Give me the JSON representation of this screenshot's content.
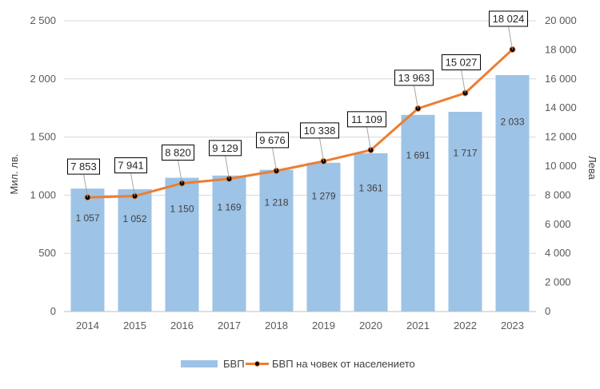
{
  "chart_data": {
    "type": "bar",
    "categories": [
      "2014",
      "2015",
      "2016",
      "2017",
      "2018",
      "2019",
      "2020",
      "2021",
      "2022",
      "2023"
    ],
    "series": [
      {
        "name": "БВП",
        "type": "bar",
        "axis": "left",
        "values": [
          1057,
          1052,
          1150,
          1169,
          1218,
          1279,
          1361,
          1691,
          1717,
          2033
        ],
        "labels": [
          "1 057",
          "1 052",
          "1 150",
          "1 169",
          "1 218",
          "1 279",
          "1 361",
          "1 691",
          "1 717",
          "2 033"
        ],
        "color": "#9dc3e6"
      },
      {
        "name": "БВП на човек от населението",
        "type": "line",
        "axis": "right",
        "values": [
          7853,
          7941,
          8820,
          9129,
          9676,
          10338,
          11109,
          13963,
          15027,
          18024
        ],
        "labels": [
          "7 853",
          "7 941",
          "8 820",
          "9 129",
          "9 676",
          "10 338",
          "11 109",
          "13 963",
          "15 027",
          "18 024"
        ],
        "color": "#ed7d31",
        "marker_color": "#000000"
      }
    ],
    "ylabel": "Мил. лв.",
    "y2label": "Лева",
    "ylim": [
      0,
      2500
    ],
    "y2lim": [
      0,
      20000
    ],
    "yticks": [
      "0",
      "500",
      "1 000",
      "1 500",
      "2 000",
      "2 500"
    ],
    "y2ticks": [
      "0",
      "2 000",
      "4 000",
      "6 000",
      "8 000",
      "10 000",
      "12 000",
      "14 000",
      "16 000",
      "18 000",
      "20 000"
    ],
    "grid": true,
    "legend_position": "bottom"
  }
}
